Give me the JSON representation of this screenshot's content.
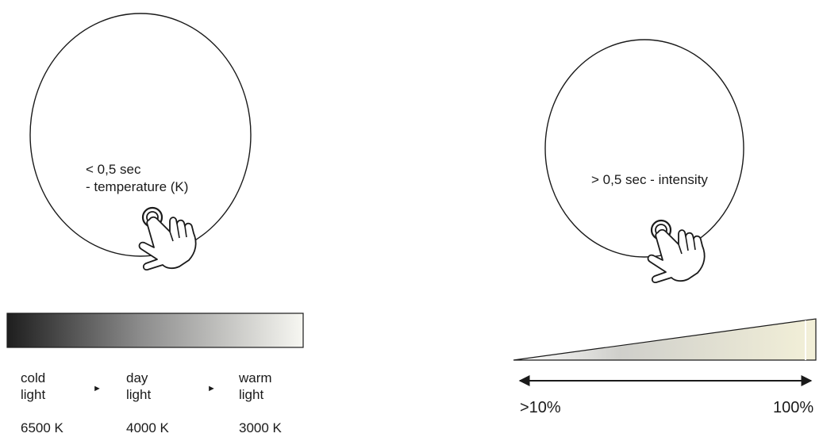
{
  "left_panel": {
    "caption_line1": "< 0,5 sec",
    "caption_line2": "- temperature (K)",
    "scale_labels": [
      {
        "line1": "cold",
        "line2": "light",
        "kelvin": "6500 K"
      },
      {
        "line1": "day",
        "line2": "light",
        "kelvin": "4000 K"
      },
      {
        "line1": "warm",
        "line2": "light",
        "kelvin": "3000 K"
      }
    ],
    "separator_glyph": "►"
  },
  "right_panel": {
    "caption": "> 0,5 sec - intensity",
    "min_label": ">10%",
    "max_label": "100%"
  },
  "colors": {
    "stroke": "#1a1a1a",
    "gradient_cold": "#1e1e1e",
    "gradient_warm": "#f7f7f2",
    "wedge_start": "#ffffff",
    "wedge_end": "#f3f0d8"
  },
  "icons": [
    "touch-hand-icon",
    "touch-hand-icon"
  ]
}
